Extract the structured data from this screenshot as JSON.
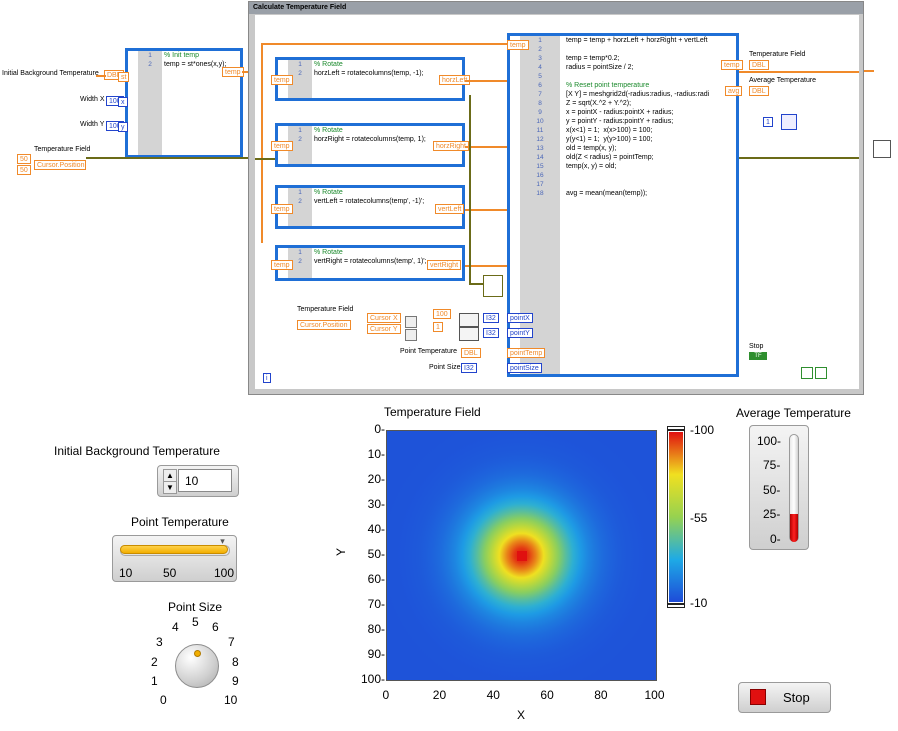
{
  "block_diagram": {
    "frame_title": "Calculate Temperature Field",
    "controls": {
      "initial_bg_label": "Initial Background Temperature",
      "initial_bg_tag": "DBL",
      "width_x_label": "Width X",
      "width_x_value": "100",
      "width_y_label": "Width Y",
      "width_y_value": "100",
      "temperature_field_label": "Temperature Field",
      "cursor_position": "Cursor.Position",
      "const_50_a": "50",
      "const_50_b": "50"
    },
    "init_script": {
      "line_numbers": [
        "1",
        "2"
      ],
      "lines": [
        "% Init temp",
        "temp = st*ones(x,y);"
      ],
      "in_tags": [
        "st",
        "x",
        "y"
      ],
      "out_tag": "temp"
    },
    "rotate_scripts": [
      {
        "line_numbers": [
          "1",
          "2"
        ],
        "comment": "% Rotate",
        "code": "horzLeft = rotatecolumns(temp, -1);",
        "in_tag": "temp",
        "out_tag": "horzLeft",
        "right_tag": "horzLeft"
      },
      {
        "line_numbers": [
          "1",
          "2"
        ],
        "comment": "% Rotate",
        "code": "horzRight = rotatecolumns(temp, 1);",
        "in_tag": "temp",
        "out_tag": "horzRight",
        "right_tag": "horzRight"
      },
      {
        "line_numbers": [
          "1",
          "2"
        ],
        "comment": "% Rotate",
        "code": "vertLeft = rotatecolumns(temp', -1)';",
        "in_tag": "temp",
        "out_tag": "vertLeft",
        "right_tag": "vertLeft"
      },
      {
        "line_numbers": [
          "1",
          "2"
        ],
        "comment": "% Rotate",
        "code": "vertRight = rotatecolumns(temp', 1)';",
        "in_tag": "temp",
        "out_tag": "vertRight",
        "right_tag": "vertRight"
      }
    ],
    "main_script": {
      "top_tag": "temp",
      "line_numbers": [
        "1",
        "2",
        "3",
        "4",
        "5",
        "6",
        "7",
        "8",
        "9",
        "10",
        "11",
        "12",
        "13",
        "14",
        "15",
        "16",
        "17",
        "18"
      ],
      "lines": [
        "temp = temp + horzLeft + horzRight + vertLeft",
        "",
        "temp = temp*0.2;",
        "radius = pointSize / 2;",
        "",
        "% Reset point temperature",
        "[X Y] = meshgrid2d(-radius:radius, -radius:radi",
        "Z = sqrt(X.^2 + Y.^2);",
        "x = pointX - radius:pointX + radius;",
        "y = pointY - radius:pointY + radius;",
        "x(x<1) = 1;  x(x>100) = 100;",
        "y(y<1) = 1;  y(y>100) = 100;",
        "old = temp(x, y);",
        "old(Z < radius) = pointTemp;",
        "temp(x, y) = old;",
        "",
        "",
        "avg = mean(mean(temp));"
      ],
      "in_tags": [
        "pointX",
        "pointY",
        "pointTemp",
        "pointSize"
      ],
      "out_tags": [
        "temp",
        "avg"
      ]
    },
    "cursor_section": {
      "temperature_field_label": "Temperature Field",
      "cursor_position": "Cursor.Position",
      "cursor_x": "Cursor X",
      "cursor_y": "Cursor Y",
      "const_100": "100",
      "const_1": "1",
      "i32_a": "I32",
      "i32_b": "I32"
    },
    "point_temp_label": "Point Temperature",
    "point_temp_tag": "DBL",
    "point_size_label": "Point Size",
    "point_size_tag": "I32",
    "temp_field_out_label": "Temperature Field",
    "temp_field_out_tag": "DBL",
    "avg_temp_out_label": "Average Temperature",
    "avg_temp_out_tag": "DBL",
    "loop_const": "1",
    "stop_label": "Stop",
    "stop_tag": "TF",
    "iter_label": "i"
  },
  "front_panel": {
    "initial_bg_label": "Initial Background Temperature",
    "initial_bg_value": "10",
    "point_temp_label": "Point Temperature",
    "point_temp_slider": {
      "min": 10,
      "max": 100,
      "value": 100,
      "ticks": [
        "10",
        "50",
        "100"
      ]
    },
    "point_size_label": "Point Size",
    "point_size_knob": {
      "min": 0,
      "max": 10,
      "value": 5,
      "ticks": [
        "0",
        "1",
        "2",
        "3",
        "4",
        "5",
        "6",
        "7",
        "8",
        "9",
        "10"
      ]
    },
    "stop_label": "Stop",
    "avg_temp": {
      "label": "Average Temperature",
      "value": 20,
      "ticks": [
        "100-",
        "75-",
        "50-",
        "25-",
        "0-"
      ]
    }
  },
  "chart_data": {
    "type": "heatmap",
    "title": "Temperature Field",
    "xlabel": "X",
    "ylabel": "Y",
    "xlim": [
      0,
      100
    ],
    "ylim": [
      100,
      0
    ],
    "x_ticks": [
      "0",
      "20",
      "40",
      "60",
      "80",
      "100"
    ],
    "y_ticks": [
      "0-",
      "10-",
      "20-",
      "30-",
      "40-",
      "50-",
      "60-",
      "70-",
      "80-",
      "90-",
      "100-"
    ],
    "colorbar": {
      "min": 10,
      "max": 100,
      "labels": [
        "-100",
        "-55",
        "-10"
      ]
    },
    "hotspot": {
      "x": 50,
      "y": 50,
      "peak": 100
    },
    "background_value": 10,
    "colors": {
      "low": "#1f4bd8",
      "mid": "#f0e020",
      "high": "#e01010"
    }
  }
}
